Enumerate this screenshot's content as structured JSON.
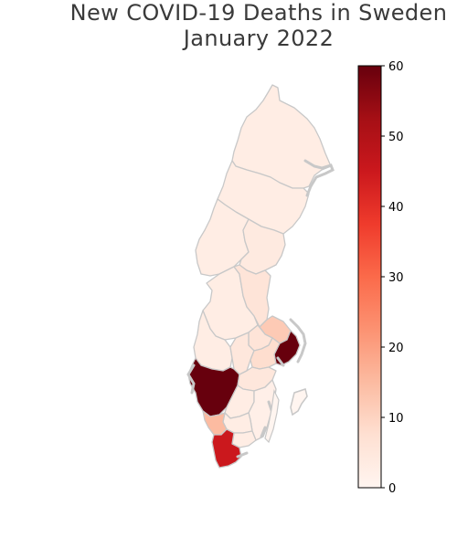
{
  "title": [
    "New COVID-19 Deaths in Sweden",
    "January 2022"
  ],
  "colorbar": {
    "colormap": "Reds",
    "min": 0,
    "max": 60,
    "ticks": [
      0,
      10,
      20,
      30,
      40,
      50,
      60
    ],
    "colors": [
      "#fff5f0",
      "#fee0d2",
      "#fcbba1",
      "#fc9272",
      "#fb6a4a",
      "#ef3b2c",
      "#cb181d",
      "#a50f15",
      "#67000d"
    ]
  },
  "map": {
    "border_color": "#c8c8c8",
    "regions": [
      {
        "name": "Norrbotten",
        "value": 3
      },
      {
        "name": "Västerbotten",
        "value": 3
      },
      {
        "name": "Jämtland",
        "value": 3
      },
      {
        "name": "Västernorrland",
        "value": 4
      },
      {
        "name": "Dalarna",
        "value": 3
      },
      {
        "name": "Gävleborg",
        "value": 6
      },
      {
        "name": "Värmland",
        "value": 3
      },
      {
        "name": "Uppsala",
        "value": 12
      },
      {
        "name": "Västmanland",
        "value": 6
      },
      {
        "name": "Örebro",
        "value": 5
      },
      {
        "name": "Stockholm",
        "value": 60
      },
      {
        "name": "Södermanland",
        "value": 8
      },
      {
        "name": "Västra Götaland",
        "value": 60
      },
      {
        "name": "Östergötland",
        "value": 5
      },
      {
        "name": "Jönköping",
        "value": 3
      },
      {
        "name": "Kalmar",
        "value": 2
      },
      {
        "name": "Kronoberg",
        "value": 3
      },
      {
        "name": "Halland",
        "value": 15
      },
      {
        "name": "Blekinge",
        "value": 3
      },
      {
        "name": "Skåne",
        "value": 45
      },
      {
        "name": "Gotland",
        "value": 0
      }
    ]
  }
}
